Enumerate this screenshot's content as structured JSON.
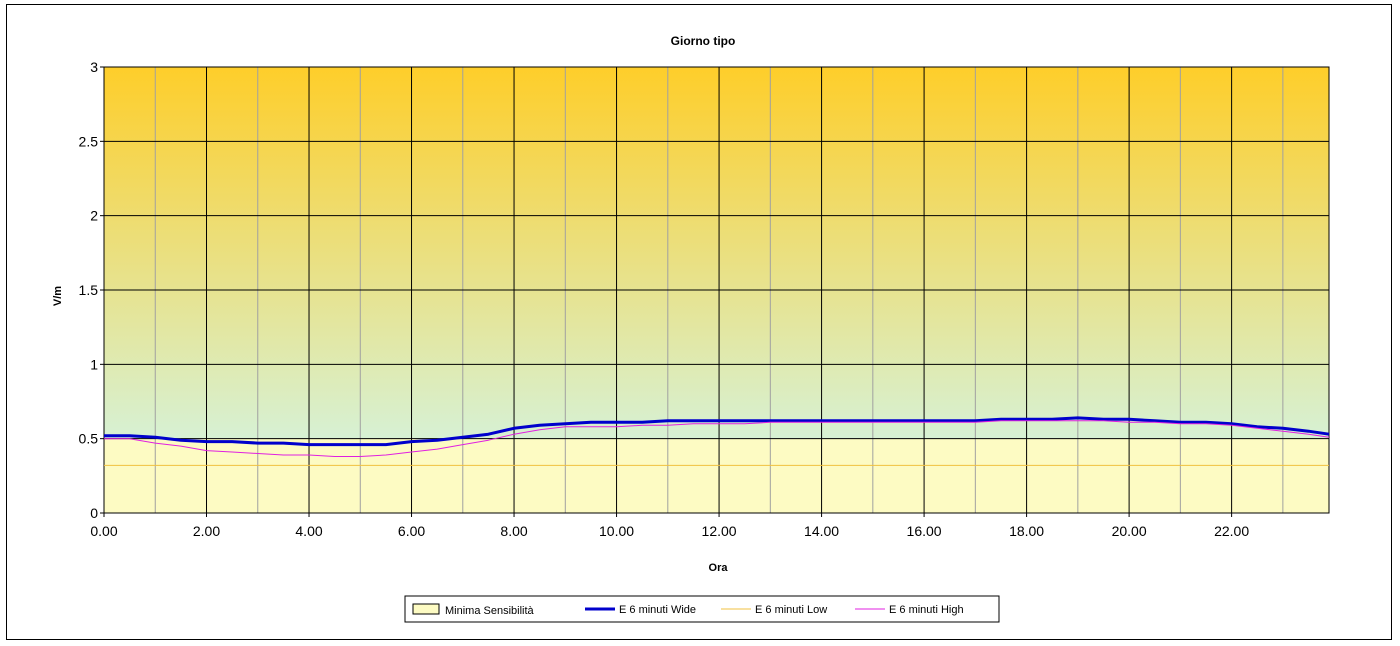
{
  "chart_data": {
    "type": "line",
    "title": "Giorno tipo",
    "xlabel": "Ora",
    "ylabel": "V/m",
    "xlim": [
      0,
      23.9
    ],
    "ylim": [
      0,
      3
    ],
    "x_ticks": [
      "0.00",
      "2.00",
      "4.00",
      "6.00",
      "8.00",
      "10.00",
      "12.00",
      "14.00",
      "16.00",
      "18.00",
      "20.00",
      "22.00"
    ],
    "y_ticks": [
      "0",
      "0.5",
      "1",
      "1.5",
      "2",
      "2.5",
      "3"
    ],
    "grid": true,
    "legend_position": "bottom",
    "minima_sensibilita": 0.5,
    "x": [
      0,
      0.5,
      1,
      1.5,
      2,
      2.5,
      3,
      3.5,
      4,
      4.5,
      5,
      5.5,
      6,
      6.5,
      7,
      7.5,
      8,
      8.5,
      9,
      9.5,
      10,
      10.5,
      11,
      11.5,
      12,
      12.5,
      13,
      13.5,
      14,
      14.5,
      15,
      15.5,
      16,
      16.5,
      17,
      17.5,
      18,
      18.5,
      19,
      19.5,
      20,
      20.5,
      21,
      21.5,
      22,
      22.5,
      23,
      23.5,
      23.9
    ],
    "series": [
      {
        "name": "Minima Sensibilità",
        "kind": "area",
        "color": "#fdfbc3",
        "values": [
          0.5,
          0.5,
          0.5,
          0.5,
          0.5,
          0.5,
          0.5,
          0.5,
          0.5,
          0.5,
          0.5,
          0.5,
          0.5,
          0.5,
          0.5,
          0.5,
          0.5,
          0.5,
          0.5,
          0.5,
          0.5,
          0.5,
          0.5,
          0.5,
          0.5,
          0.5,
          0.5,
          0.5,
          0.5,
          0.5,
          0.5,
          0.5,
          0.5,
          0.5,
          0.5,
          0.5,
          0.5,
          0.5,
          0.5,
          0.5,
          0.5,
          0.5,
          0.5,
          0.5,
          0.5,
          0.5,
          0.5,
          0.5,
          0.5
        ]
      },
      {
        "name": "E 6 minuti Wide",
        "kind": "line",
        "color": "#0000cc",
        "values": [
          0.52,
          0.52,
          0.51,
          0.49,
          0.48,
          0.48,
          0.47,
          0.47,
          0.46,
          0.46,
          0.46,
          0.46,
          0.48,
          0.49,
          0.51,
          0.53,
          0.57,
          0.59,
          0.6,
          0.61,
          0.61,
          0.61,
          0.62,
          0.62,
          0.62,
          0.62,
          0.62,
          0.62,
          0.62,
          0.62,
          0.62,
          0.62,
          0.62,
          0.62,
          0.62,
          0.63,
          0.63,
          0.63,
          0.64,
          0.63,
          0.63,
          0.62,
          0.61,
          0.61,
          0.6,
          0.58,
          0.57,
          0.55,
          0.53
        ]
      },
      {
        "name": "E 6 minuti Low",
        "kind": "line",
        "color": "#f0c040",
        "values": [
          0.32,
          0.32,
          0.32,
          0.32,
          0.32,
          0.32,
          0.32,
          0.32,
          0.32,
          0.32,
          0.32,
          0.32,
          0.32,
          0.32,
          0.32,
          0.32,
          0.32,
          0.32,
          0.32,
          0.32,
          0.32,
          0.32,
          0.32,
          0.32,
          0.32,
          0.32,
          0.32,
          0.32,
          0.32,
          0.32,
          0.32,
          0.32,
          0.32,
          0.32,
          0.32,
          0.32,
          0.32,
          0.32,
          0.32,
          0.32,
          0.32,
          0.32,
          0.32,
          0.32,
          0.32,
          0.32,
          0.32,
          0.32,
          0.32
        ]
      },
      {
        "name": "E 6 minuti High",
        "kind": "line",
        "color": "#e020e0",
        "values": [
          0.5,
          0.5,
          0.47,
          0.45,
          0.42,
          0.41,
          0.4,
          0.39,
          0.39,
          0.38,
          0.38,
          0.39,
          0.41,
          0.43,
          0.46,
          0.49,
          0.53,
          0.56,
          0.58,
          0.58,
          0.58,
          0.59,
          0.59,
          0.6,
          0.6,
          0.6,
          0.61,
          0.61,
          0.61,
          0.61,
          0.61,
          0.61,
          0.61,
          0.61,
          0.61,
          0.62,
          0.62,
          0.62,
          0.62,
          0.62,
          0.61,
          0.61,
          0.6,
          0.6,
          0.59,
          0.57,
          0.55,
          0.53,
          0.51
        ]
      }
    ]
  },
  "colors": {
    "plot_top": "#fece2a",
    "plot_bottom": "#cff8f6",
    "grid_major": "#000000",
    "grid_minor": "#a0a0a0"
  }
}
